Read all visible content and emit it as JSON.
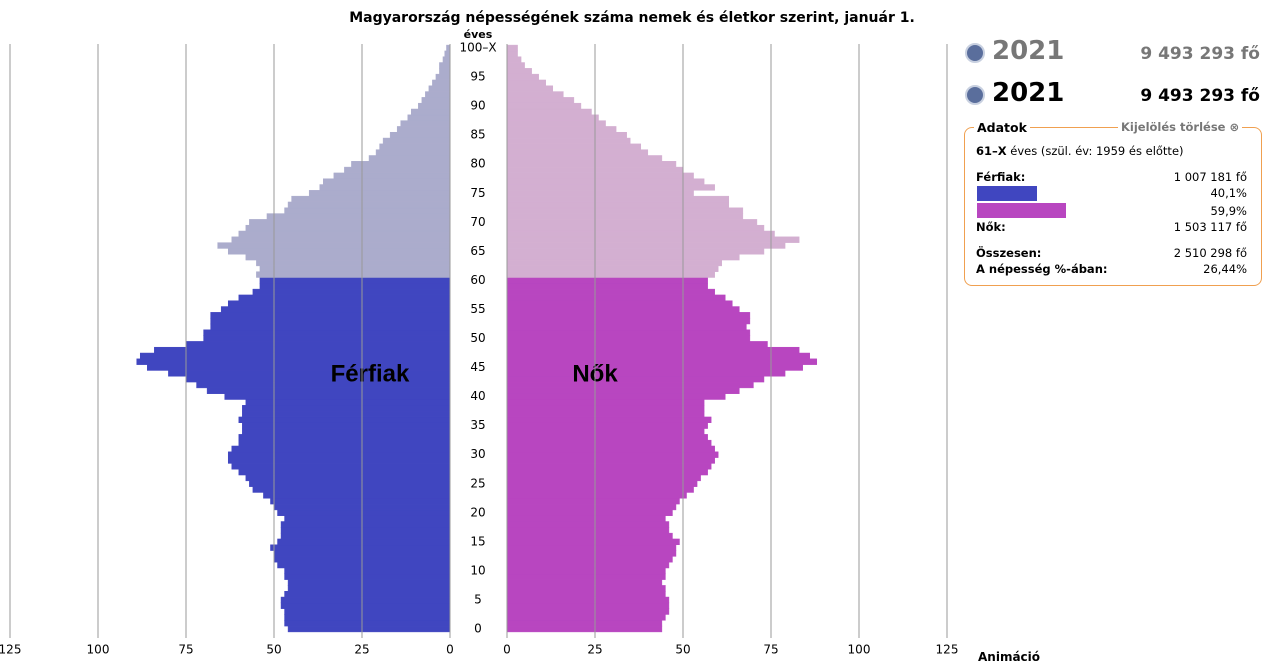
{
  "chart_data": {
    "type": "pyramid",
    "title": "Magyarország népességének száma nemek és életkor szerint, január 1.",
    "y_axis_label": "éves",
    "highlight_from": 61,
    "xlim": [
      0,
      125
    ],
    "xticks": [
      0,
      25,
      50,
      75,
      100,
      125
    ],
    "ylim": [
      0,
      100
    ],
    "yticks": [
      0,
      5,
      10,
      15,
      20,
      25,
      30,
      35,
      40,
      45,
      50,
      55,
      60,
      65,
      70,
      75,
      80,
      85,
      90,
      95,
      {
        "value": 100,
        "label": "100–X"
      }
    ],
    "series": [
      {
        "name": "Férfiak",
        "side": "left",
        "color": "#4046c0",
        "highlight_color": "#abaccc",
        "values": [
          46,
          47,
          47,
          47,
          48,
          48,
          47,
          46,
          46,
          47,
          47,
          49,
          50,
          50,
          51,
          49,
          48,
          48,
          48,
          47,
          49,
          50,
          51,
          53,
          56,
          57,
          58,
          60,
          62,
          63,
          63,
          62,
          60,
          60,
          59,
          59,
          60,
          59,
          59,
          58,
          64,
          69,
          72,
          75,
          80,
          86,
          89,
          88,
          84,
          75,
          70,
          70,
          68,
          68,
          68,
          65,
          63,
          60,
          56,
          54,
          54,
          55,
          54,
          55,
          58,
          63,
          66,
          62,
          60,
          58,
          57,
          52,
          47,
          46,
          45,
          40,
          37,
          36,
          33,
          30,
          28,
          23,
          21,
          20,
          19,
          17,
          15,
          14,
          12,
          11,
          9,
          8,
          7,
          6,
          5,
          4,
          3,
          3,
          2,
          1.5,
          1
        ]
      },
      {
        "name": "Nők",
        "side": "right",
        "color": "#b846c0",
        "highlight_color": "#d3afd1",
        "values": [
          44,
          44,
          45,
          46,
          46,
          46,
          45,
          45,
          44,
          45,
          45,
          46,
          47,
          48,
          48,
          49,
          47,
          46,
          46,
          45,
          47,
          48,
          49,
          51,
          53,
          54,
          55,
          57,
          58,
          59,
          60,
          59,
          58,
          57,
          56,
          57,
          58,
          56,
          56,
          56,
          62,
          66,
          70,
          73,
          79,
          84,
          88,
          86,
          83,
          74,
          69,
          69,
          68,
          69,
          69,
          66,
          64,
          62,
          59,
          57,
          57,
          59,
          60,
          61,
          66,
          73,
          79,
          83,
          76,
          73,
          71,
          67,
          67,
          63,
          63,
          53,
          59,
          56,
          53,
          50,
          48,
          44,
          40,
          38,
          35,
          34,
          31,
          28,
          26,
          24,
          21,
          19,
          16,
          13,
          11,
          9,
          7,
          5,
          4,
          3,
          3
        ]
      }
    ]
  },
  "panel": {
    "years": [
      {
        "year": "2021",
        "total": "9 493 293 fő"
      },
      {
        "year": "2021",
        "total": "9 493 293 fő"
      }
    ],
    "box_title": "Adatok",
    "clear": "Kijelölés törlése",
    "selection_age": "61–X",
    "selection_rest": "éves (szül. év: 1959 és előtte)",
    "men_label": "Férfiak:",
    "men_value": "1 007 181 fő",
    "shares": [
      40.1,
      59.9
    ],
    "share_labels": [
      "40,1%",
      "59,9%"
    ],
    "women_label": "Nők:",
    "women_value": "1 503 117 fő",
    "total_label": "Összesen:",
    "total_value": "2 510 298 fő",
    "pct_label": "A népesség %-ában:",
    "pct_value": "26,44%",
    "animation": "Animáció"
  }
}
